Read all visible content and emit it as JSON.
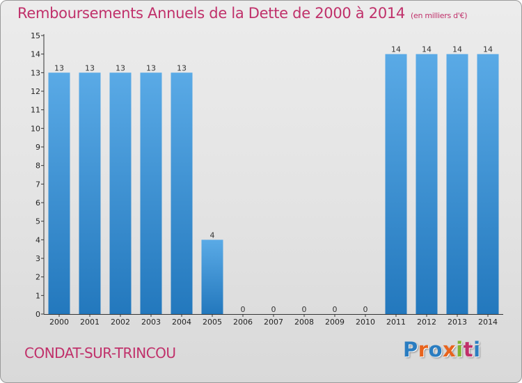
{
  "title": "Remboursements Annuels de la Dette de 2000 à 2014",
  "title_unit": "(en milliers d'€)",
  "place": "CONDAT-SUR-TRINCOU",
  "logo": {
    "text": "Proxiti",
    "colors": [
      "#2a7dc1",
      "#e8641e",
      "#2a7dc1",
      "#e8641e",
      "#7fb432",
      "#c0306a",
      "#2a7dc1"
    ]
  },
  "colors": {
    "title": "#c0306a",
    "bar_light": "#5aaae6",
    "bar_dark": "#2378bd",
    "axis": "#333333"
  },
  "chart_data": {
    "type": "bar",
    "title": "Remboursements Annuels de la Dette de 2000 à 2014",
    "ylabel": "",
    "xlabel": "",
    "categories": [
      "2000",
      "2001",
      "2002",
      "2003",
      "2004",
      "2005",
      "2006",
      "2007",
      "2008",
      "2009",
      "2010",
      "2011",
      "2012",
      "2013",
      "2014"
    ],
    "values": [
      13,
      13,
      13,
      13,
      13,
      4,
      0,
      0,
      0,
      0,
      0,
      14,
      14,
      14,
      14
    ],
    "ylim": [
      0,
      15
    ],
    "yticks": [
      "0",
      "1",
      "2",
      "3",
      "4",
      "5",
      "6",
      "7",
      "8",
      "9",
      "10",
      "11",
      "12",
      "13",
      "14",
      "15"
    ],
    "grid": false,
    "legend": "none"
  }
}
